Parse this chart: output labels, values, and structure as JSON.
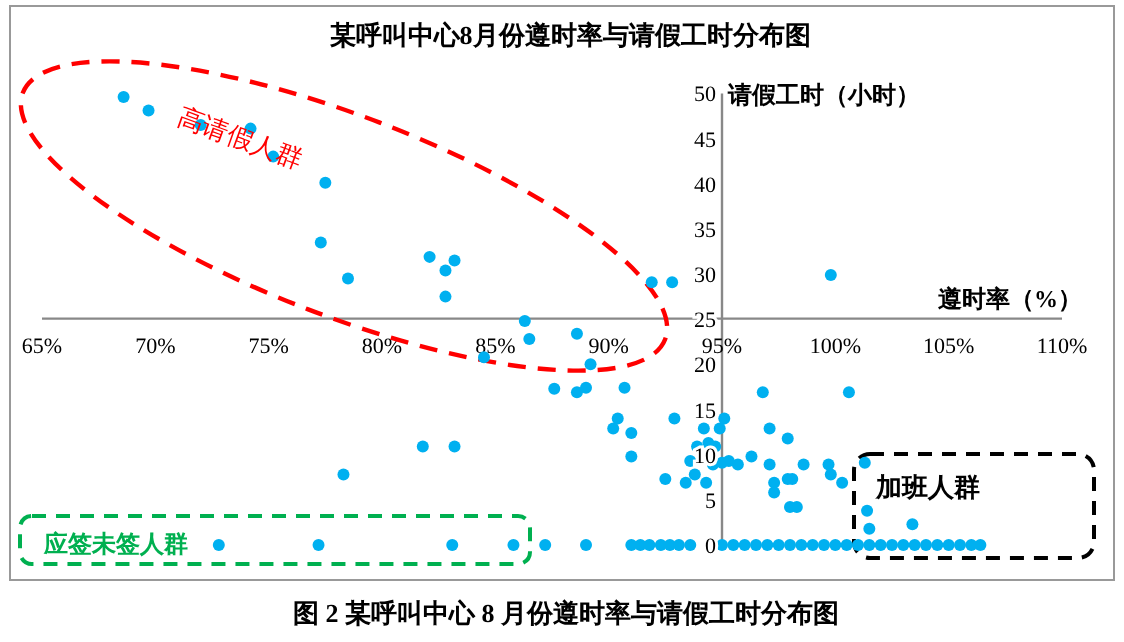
{
  "chart_data": {
    "type": "scatter",
    "title": "某呼叫中心8月份遵时率与请假工时分布图",
    "xlabel": "遵时率（%）",
    "ylabel": "请假工时（小时）",
    "xlim": [
      65,
      110
    ],
    "ylim": [
      0,
      50
    ],
    "xticks": [
      {
        "value": 65,
        "label": "65%"
      },
      {
        "value": 70,
        "label": "70%"
      },
      {
        "value": 75,
        "label": "75%"
      },
      {
        "value": 80,
        "label": "80%"
      },
      {
        "value": 85,
        "label": "85%"
      },
      {
        "value": 90,
        "label": "90%"
      },
      {
        "value": 95,
        "label": "95%"
      },
      {
        "value": 100,
        "label": "100%"
      },
      {
        "value": 105,
        "label": "105%"
      },
      {
        "value": 110,
        "label": "110%"
      }
    ],
    "yticks": [
      0,
      5,
      10,
      15,
      20,
      25,
      30,
      35,
      40,
      45,
      50
    ],
    "grid": false,
    "marker": "circle",
    "annotations": [
      "高请假人群",
      "应签未签人群",
      "加班人群",
      "图 2 某呼叫中心 8 月份遵时率与请假工时分布图"
    ],
    "series": [
      {
        "color": "#00b0f0",
        "x": [
          68.6,
          69.7,
          72.0,
          74.2,
          75.2,
          77.5,
          77.3,
          78.5,
          82.1,
          83.2,
          82.8,
          82.8,
          86.3,
          86.5,
          84.5,
          87.6,
          81.8,
          83.2,
          78.3,
          72.8,
          77.2,
          83.1,
          85.8,
          87.2,
          91.9,
          92.8,
          99.8,
          88.6,
          88.6,
          89.0,
          89.2,
          90.7,
          90.2,
          90.4,
          91.0,
          91.0,
          92.5,
          92.9,
          93.4,
          93.6,
          93.8,
          93.9,
          94.2,
          94.3,
          94.4,
          94.7,
          94.6,
          94.9,
          95.1,
          95.0,
          95.3,
          95.7,
          96.3,
          96.8,
          97.1,
          97.1,
          97.3,
          97.3,
          97.9,
          97.9,
          98.1,
          98.0,
          98.3,
          98.6,
          99.7,
          99.8,
          100.3,
          100.6,
          101.3,
          101.4,
          101.5,
          103.4,
          89.0,
          91.0,
          91.4,
          91.8,
          92.3,
          92.7,
          93.1,
          93.6,
          95.0,
          95.5,
          96.0,
          96.5,
          97.0,
          97.5,
          98.0,
          98.5,
          99.0,
          99.5,
          100.0,
          100.5,
          101.0,
          101.5,
          102.0,
          102.5,
          103.0,
          103.5,
          104.0,
          104.5,
          105.0,
          105.5,
          106.0,
          106.4
        ],
        "values": [
          49.6,
          48.1,
          46.5,
          46.1,
          43.0,
          40.1,
          33.5,
          29.5,
          31.9,
          31.5,
          30.4,
          27.5,
          24.8,
          22.8,
          20.8,
          17.3,
          10.9,
          10.9,
          7.8,
          0,
          0,
          0,
          0,
          0,
          29.1,
          29.1,
          29.9,
          23.4,
          16.9,
          17.4,
          20.0,
          17.4,
          12.9,
          14.0,
          12.4,
          9.8,
          7.3,
          14.0,
          6.9,
          9.3,
          7.8,
          10.9,
          12.9,
          6.9,
          11.3,
          10.9,
          8.9,
          12.9,
          14.0,
          9.1,
          9.3,
          8.9,
          9.8,
          16.9,
          12.9,
          8.9,
          6.9,
          5.8,
          7.3,
          11.8,
          7.3,
          4.2,
          4.2,
          8.9,
          8.9,
          7.8,
          6.9,
          16.9,
          9.1,
          3.8,
          1.8,
          2.3,
          0,
          0,
          0,
          0,
          0,
          0,
          0,
          0,
          0,
          0,
          0,
          0,
          0,
          0,
          0,
          0,
          0,
          0,
          0,
          0,
          0,
          0,
          0,
          0,
          0,
          0,
          0,
          0,
          0,
          0,
          0,
          0
        ]
      }
    ]
  }
}
